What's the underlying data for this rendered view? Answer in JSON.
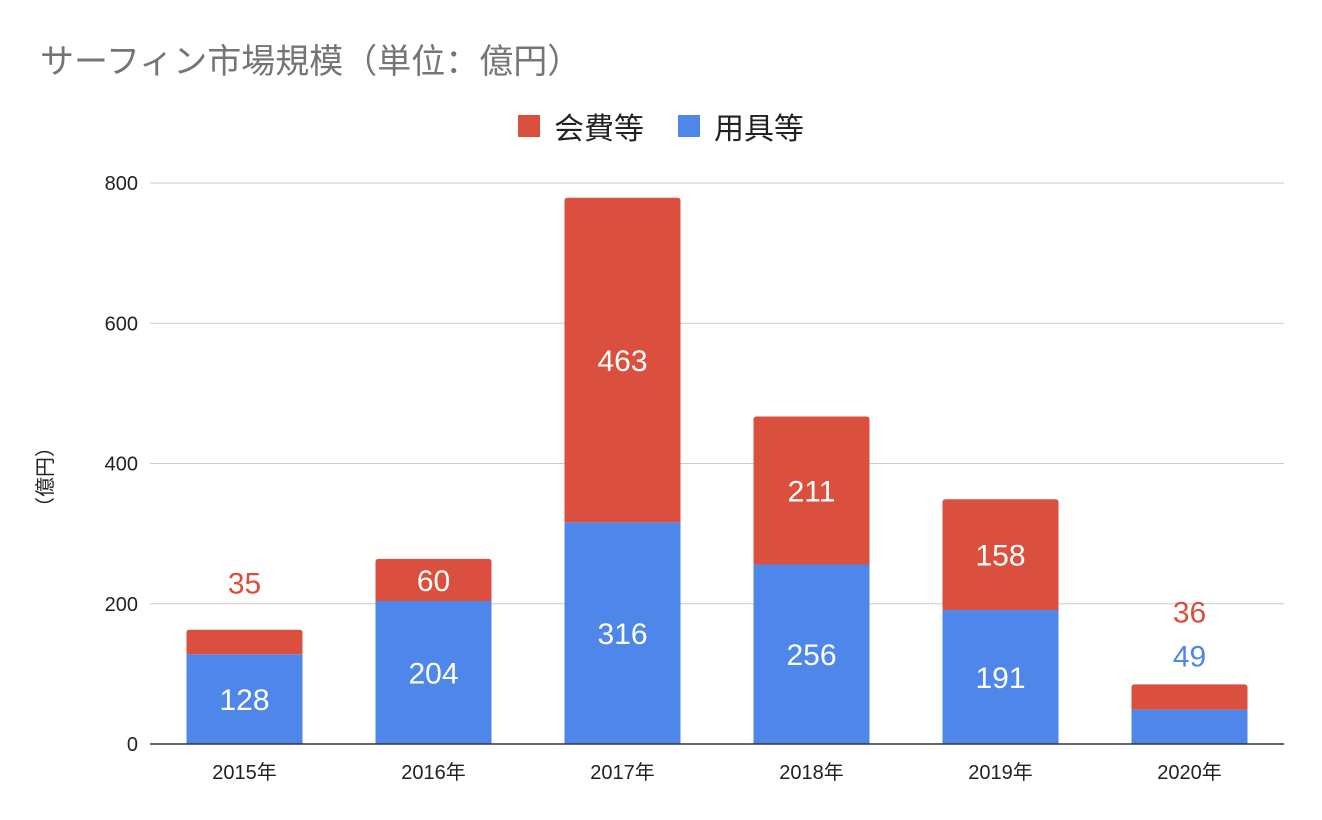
{
  "chart_data": {
    "type": "bar",
    "stacked": true,
    "title": "サーフィン市場規模（単位：億円）",
    "ylabel": "（億円）",
    "xlabel": "",
    "categories": [
      "2015年",
      "2016年",
      "2017年",
      "2018年",
      "2019年",
      "2020年"
    ],
    "series": [
      {
        "name": "用具等",
        "color": "#4f86ea",
        "values": [
          128,
          204,
          316,
          256,
          191,
          49
        ]
      },
      {
        "name": "会費等",
        "color": "#db4f3f",
        "values": [
          35,
          60,
          463,
          211,
          158,
          36
        ]
      }
    ],
    "legend_order": [
      "会費等",
      "用具等"
    ],
    "ylim": [
      0,
      800
    ],
    "yticks": [
      0,
      200,
      400,
      600,
      800
    ],
    "grid": true,
    "legend_position": "top-center"
  }
}
